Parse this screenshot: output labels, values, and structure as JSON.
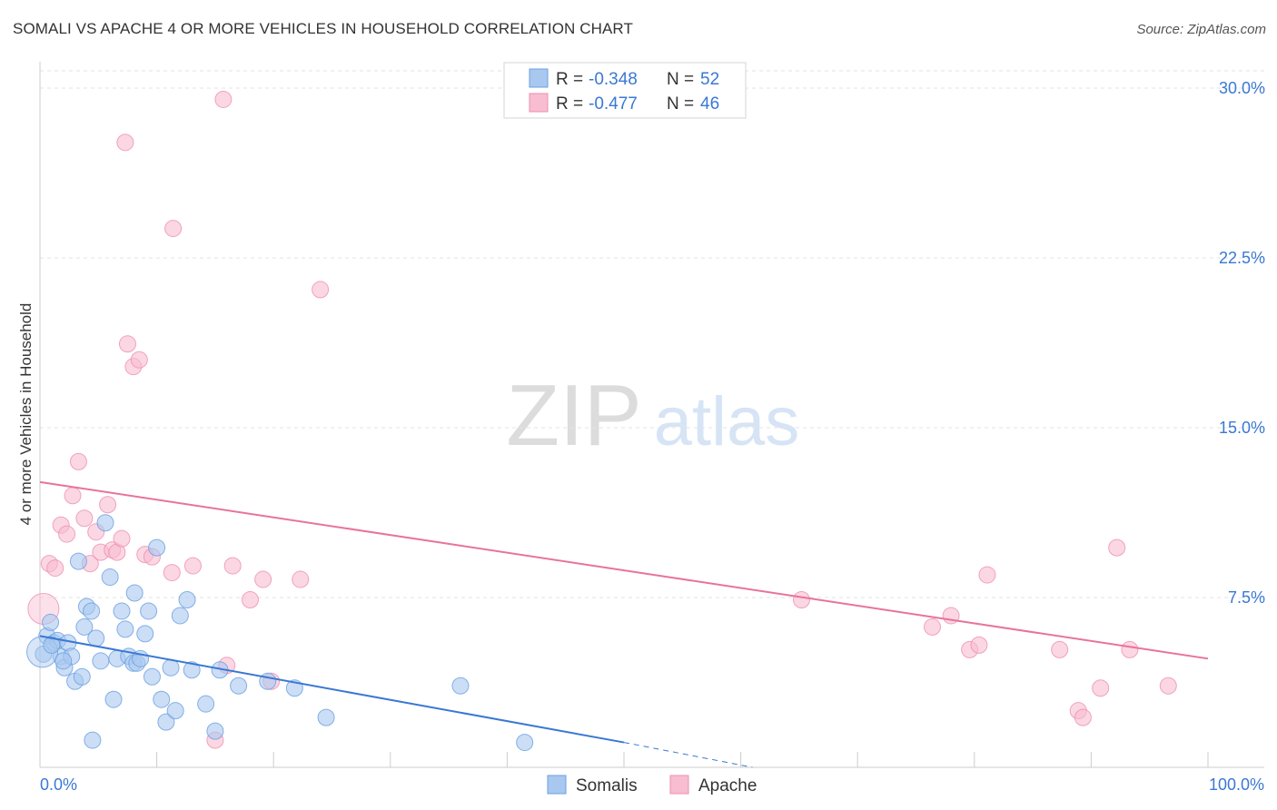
{
  "header": {
    "title": "SOMALI VS APACHE 4 OR MORE VEHICLES IN HOUSEHOLD CORRELATION CHART",
    "source": "Source: ZipAtlas.com"
  },
  "watermark": {
    "zip": "ZIP",
    "atlas": "atlas"
  },
  "stats_legend": [
    {
      "r_label": "R =",
      "r_value": "-0.348",
      "n_label": "N =",
      "n_value": "52"
    },
    {
      "r_label": "R =",
      "r_value": "-0.477",
      "n_label": "N =",
      "n_value": "46"
    }
  ],
  "colors": {
    "somali_fill": "#a9c8f0",
    "somali_stroke": "#6a9fe0",
    "somali_line": "#3a78d4",
    "apache_fill": "#f8bdd0",
    "apache_stroke": "#ee8fb0",
    "apache_line": "#e8739c",
    "axis_label": "#3a78d4",
    "grid": "#e3e3e3"
  },
  "chart_data": {
    "type": "scatter",
    "title": "SOMALI VS APACHE 4 OR MORE VEHICLES IN HOUSEHOLD CORRELATION CHART",
    "xlabel": "",
    "ylabel": "4 or more Vehicles in Household",
    "xlim": [
      0,
      100
    ],
    "ylim": [
      0,
      31
    ],
    "x_tick_labels": [
      "0.0%",
      "100.0%"
    ],
    "y_ticks": [
      7.5,
      15.0,
      22.5,
      30.0
    ],
    "y_tick_labels": [
      "7.5%",
      "15.0%",
      "22.5%",
      "30.0%"
    ],
    "grid": true,
    "legend": "bottom-center",
    "series": [
      {
        "name": "Somalis",
        "points": [
          [
            0.3,
            5.0
          ],
          [
            0.6,
            5.8
          ],
          [
            0.9,
            6.4
          ],
          [
            1.2,
            5.5
          ],
          [
            1.5,
            5.6
          ],
          [
            1.8,
            4.9
          ],
          [
            2.1,
            4.4
          ],
          [
            2.4,
            5.5
          ],
          [
            2.7,
            4.9
          ],
          [
            3.0,
            3.8
          ],
          [
            3.3,
            9.1
          ],
          [
            3.6,
            4.0
          ],
          [
            3.8,
            6.2
          ],
          [
            4.0,
            7.1
          ],
          [
            4.4,
            6.9
          ],
          [
            4.8,
            5.7
          ],
          [
            5.2,
            4.7
          ],
          [
            5.6,
            10.8
          ],
          [
            6.0,
            8.4
          ],
          [
            6.3,
            3.0
          ],
          [
            6.6,
            4.8
          ],
          [
            7.0,
            6.9
          ],
          [
            7.3,
            6.1
          ],
          [
            7.6,
            4.9
          ],
          [
            8.0,
            4.6
          ],
          [
            8.3,
            4.6
          ],
          [
            8.6,
            4.8
          ],
          [
            9.0,
            5.9
          ],
          [
            9.3,
            6.9
          ],
          [
            9.6,
            4.0
          ],
          [
            10.0,
            9.7
          ],
          [
            10.4,
            3.0
          ],
          [
            10.8,
            2.0
          ],
          [
            11.2,
            4.4
          ],
          [
            11.6,
            2.5
          ],
          [
            12.0,
            6.7
          ],
          [
            12.6,
            7.4
          ],
          [
            13.0,
            4.3
          ],
          [
            14.2,
            2.8
          ],
          [
            15.0,
            1.6
          ],
          [
            15.4,
            4.3
          ],
          [
            17.0,
            3.6
          ],
          [
            19.5,
            3.8
          ],
          [
            21.8,
            3.5
          ],
          [
            24.5,
            2.2
          ],
          [
            36.0,
            3.6
          ],
          [
            41.5,
            1.1
          ],
          [
            0.2,
            5.1
          ],
          [
            1.0,
            5.4
          ],
          [
            2.0,
            4.7
          ],
          [
            4.5,
            1.2
          ],
          [
            8.1,
            7.7
          ]
        ]
      },
      {
        "name": "Apache",
        "points": [
          [
            0.3,
            7.0
          ],
          [
            0.8,
            9.0
          ],
          [
            1.3,
            8.8
          ],
          [
            1.8,
            10.7
          ],
          [
            2.3,
            10.3
          ],
          [
            2.8,
            12.0
          ],
          [
            3.3,
            13.5
          ],
          [
            3.8,
            11.0
          ],
          [
            4.3,
            9.0
          ],
          [
            4.8,
            10.4
          ],
          [
            5.2,
            9.5
          ],
          [
            5.8,
            11.6
          ],
          [
            6.2,
            9.6
          ],
          [
            6.6,
            9.5
          ],
          [
            7.0,
            10.1
          ],
          [
            7.5,
            18.7
          ],
          [
            8.0,
            17.7
          ],
          [
            8.5,
            18.0
          ],
          [
            9.0,
            9.4
          ],
          [
            9.6,
            9.3
          ],
          [
            11.3,
            8.6
          ],
          [
            13.1,
            8.9
          ],
          [
            15.0,
            1.2
          ],
          [
            16.0,
            4.5
          ],
          [
            18.0,
            7.4
          ],
          [
            19.1,
            8.3
          ],
          [
            19.8,
            3.8
          ],
          [
            22.3,
            8.3
          ],
          [
            24.0,
            21.1
          ],
          [
            7.3,
            27.6
          ],
          [
            11.4,
            23.8
          ],
          [
            15.7,
            29.5
          ],
          [
            16.5,
            8.9
          ],
          [
            65.2,
            7.4
          ],
          [
            76.4,
            6.2
          ],
          [
            78.0,
            6.7
          ],
          [
            79.6,
            5.2
          ],
          [
            80.4,
            5.4
          ],
          [
            81.1,
            8.5
          ],
          [
            87.3,
            5.2
          ],
          [
            88.9,
            2.5
          ],
          [
            89.3,
            2.2
          ],
          [
            90.8,
            3.5
          ],
          [
            92.2,
            9.7
          ],
          [
            93.3,
            5.2
          ],
          [
            96.6,
            3.6
          ]
        ]
      }
    ],
    "trend_lines": [
      {
        "series": "Somalis",
        "x_start": 0,
        "y_start": 5.8,
        "x_end": 50,
        "y_end": 1.1,
        "dashed_to_x": 61,
        "dashed_to_y": 0
      },
      {
        "series": "Apache",
        "x_start": 0,
        "y_start": 12.6,
        "x_end": 100,
        "y_end": 4.8
      }
    ]
  },
  "bottom_legend": {
    "items": [
      {
        "label": "Somalis"
      },
      {
        "label": "Apache"
      }
    ]
  }
}
